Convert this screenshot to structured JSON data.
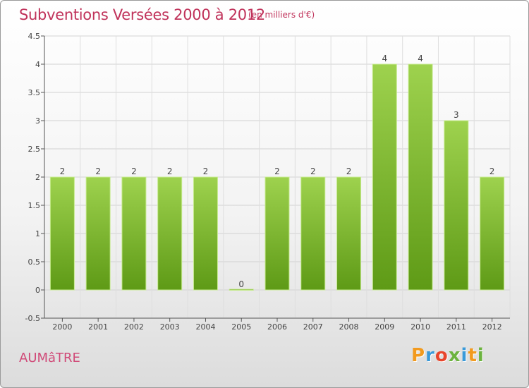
{
  "title": "Subventions Versées 2000 à 2012",
  "subtitle": "(en milliers d'€)",
  "location": "AUMâTRE",
  "brand": {
    "p": "P",
    "r": "r",
    "o": "o",
    "x": "x",
    "i": "i",
    "t": "t",
    "i2": "i"
  },
  "colors": {
    "bar_light": "#9ed24e",
    "bar_dark": "#5e9a16",
    "title": "#c0325a"
  },
  "chart_data": {
    "type": "bar",
    "categories": [
      "2000",
      "2001",
      "2002",
      "2003",
      "2004",
      "2005",
      "2006",
      "2007",
      "2008",
      "2009",
      "2010",
      "2011",
      "2012"
    ],
    "values": [
      2,
      2,
      2,
      2,
      2,
      0,
      2,
      2,
      2,
      4,
      4,
      3,
      2
    ],
    "data_labels": [
      "2",
      "2",
      "2",
      "2",
      "2",
      "0",
      "2",
      "2",
      "2",
      "4",
      "4",
      "3",
      "2"
    ],
    "ylim": [
      -0.5,
      4.5
    ],
    "yticks": [
      -0.5,
      0,
      0.5,
      1,
      1.5,
      2,
      2.5,
      3,
      3.5,
      4,
      4.5
    ],
    "ytick_labels": [
      "-0.5",
      "0",
      "0.5",
      "1",
      "1.5",
      "2",
      "2.5",
      "3",
      "3.5",
      "4",
      "4.5"
    ],
    "grid": true,
    "xlabel": "",
    "ylabel": ""
  }
}
